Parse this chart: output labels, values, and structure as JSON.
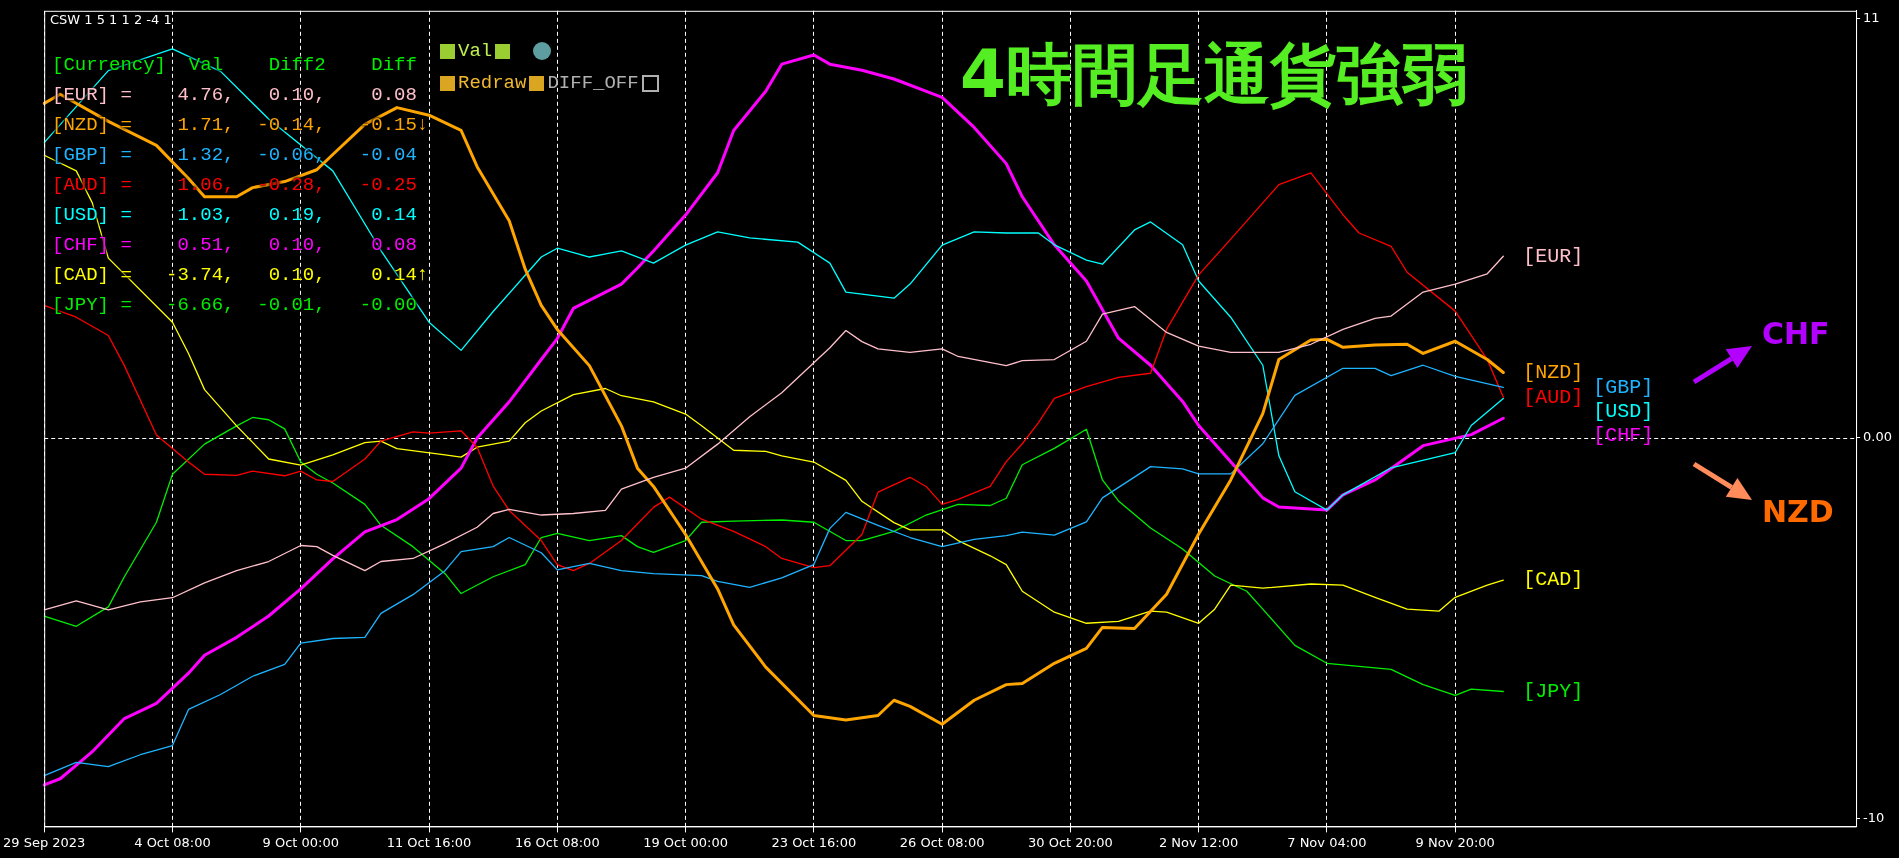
{
  "chart_data": {
    "type": "line",
    "title": "4時間足通貨強弱",
    "annotations": [
      "CSW 1 5 1 1 2 -4 1",
      "[Currency]  Val    Diff2    Diff",
      "[EUR] =    4.76,   0.10,    0.08",
      "[NZD] =    1.71,  -0.14,   -0.15↓",
      "[GBP] =    1.32,  -0.06,   -0.04",
      "[AUD] =    1.06,  -0.28,   -0.25",
      "[USD] =    1.03,   0.19,    0.14",
      "[CHF] =    0.51,   0.10,    0.08",
      "[CAD] =   -3.74,   0.10,    0.14↑",
      "[JPY] =   -6.66,  -0.01,   -0.00",
      "Val",
      "Redraw",
      "DIFF_OFF",
      "CHF",
      "NZD"
    ],
    "categories": [
      "29 Sep 2023",
      null,
      null,
      null,
      null,
      null,
      null,
      null,
      "4 Oct 08:00",
      null,
      null,
      null,
      null,
      null,
      null,
      null,
      "9 Oct 00:00",
      null,
      null,
      null,
      null,
      null,
      null,
      null,
      "11 Oct 16:00",
      null,
      null,
      null,
      null,
      null,
      null,
      null,
      "16 Oct 08:00",
      null,
      null,
      null,
      null,
      null,
      null,
      null,
      "19 Oct 00:00",
      null,
      null,
      null,
      null,
      null,
      null,
      null,
      "23 Oct 16:00",
      null,
      null,
      null,
      null,
      null,
      null,
      null,
      "26 Oct 08:00",
      null,
      null,
      null,
      null,
      null,
      null,
      null,
      "30 Oct 20:00",
      null,
      null,
      null,
      null,
      null,
      null,
      null,
      "2 Nov 12:00",
      null,
      null,
      null,
      null,
      null,
      null,
      null,
      "7 Nov 04:00",
      null,
      null,
      null,
      null,
      null,
      null,
      null,
      "9 Nov 20:00",
      null,
      null,
      null,
      null,
      null,
      null,
      null,
      null,
      null,
      null,
      null,
      null,
      null,
      null,
      null,
      null,
      null,
      null,
      null,
      null,
      null,
      null,
      null,
      null,
      null
    ],
    "ylim": [
      -10.2,
      11.2
    ],
    "yticks": [
      11,
      {
        "value": 0,
        "label": "0.00"
      },
      -10
    ],
    "grid": "x",
    "ref_lines": [
      {
        "axis": "y",
        "value": 0,
        "color": "#ffffff",
        "line_style": "dashed"
      }
    ],
    "series": [
      {
        "name": "[EUR]",
        "color": "#ffc0cb",
        "values": [
          -4.52,
          null,
          -4.28,
          null,
          -4.52,
          null,
          -4.31,
          null,
          -4.2,
          null,
          -3.81,
          null,
          -3.49,
          null,
          -3.25,
          null,
          -2.83,
          -2.86,
          -3.09,
          null,
          -3.49,
          -3.25,
          null,
          -3.17,
          null,
          -2.78,
          null,
          -2.35,
          -1.99,
          -1.88,
          null,
          -2.03,
          null,
          -1.99,
          null,
          -1.91,
          -1.35,
          null,
          -1.04,
          null,
          -0.8,
          null,
          -0.17,
          null,
          0.55,
          null,
          1.18,
          1.57,
          null,
          2.36,
          2.81,
          2.52,
          2.33,
          null,
          2.24,
          null,
          2.33,
          2.13,
          null,
          null,
          1.89,
          2.02,
          null,
          2.05,
          null,
          2.53,
          3.24,
          null,
          3.44,
          null,
          2.76,
          null,
          2.4,
          null,
          2.24,
          null,
          null,
          2.24,
          null,
          2.45,
          null,
          2.84,
          null,
          3.13,
          3.19,
          null,
          3.82,
          null,
          4.03,
          null,
          4.3,
          4.76,
          null,
          null,
          null,
          null,
          null,
          null,
          null,
          null,
          null,
          null,
          null,
          null,
          null,
          null,
          null,
          null,
          null,
          null,
          null,
          null,
          null,
          null
        ]
      },
      {
        "name": "[NZD]",
        "color": "#ffa500",
        "values": [
          8.77,
          9.01,
          null,
          null,
          8.3,
          null,
          null,
          7.67,
          null,
          6.8,
          6.32,
          null,
          6.32,
          6.56,
          null,
          6.72,
          null,
          7.03,
          7.43,
          null,
          8.22,
          null,
          8.66,
          null,
          8.46,
          null,
          8.06,
          7.11,
          null,
          5.69,
          4.42,
          3.47,
          2.84,
          null,
          1.89,
          null,
          0.31,
          -0.8,
          -1.28,
          null,
          -2.54,
          null,
          -3.97,
          -4.91,
          null,
          -6.02,
          null,
          null,
          -7.29,
          null,
          -7.41,
          null,
          -7.29,
          -6.89,
          -7.05,
          null,
          -7.52,
          null,
          -6.89,
          null,
          -6.48,
          -6.45,
          null,
          -5.92,
          null,
          -5.53,
          -4.98,
          null,
          -5.01,
          null,
          -4.11,
          null,
          -2.53,
          null,
          -1.11,
          null,
          0.63,
          2.05,
          null,
          2.56,
          2.58,
          2.37,
          null,
          2.43,
          null,
          2.45,
          2.21,
          null,
          2.53,
          null,
          2.05,
          1.71,
          null,
          null,
          null,
          null,
          null,
          null,
          null,
          null,
          null,
          null,
          null,
          null,
          null,
          null,
          null,
          null,
          null,
          null,
          null,
          null,
          null,
          null
        ]
      },
      {
        "name": "[GBP]",
        "color": "#1eb4ff",
        "values": [
          -8.87,
          null,
          -8.52,
          null,
          -8.63,
          null,
          -8.32,
          null,
          -8.08,
          -7.13,
          null,
          -6.74,
          null,
          -6.26,
          null,
          -5.95,
          -5.39,
          null,
          -5.27,
          null,
          -5.24,
          -4.61,
          null,
          -4.12,
          null,
          -3.49,
          -2.99,
          null,
          -2.86,
          -2.62,
          null,
          -3.02,
          -3.47,
          null,
          -3.3,
          null,
          -3.49,
          null,
          -3.57,
          null,
          null,
          -3.62,
          -3.77,
          null,
          -3.93,
          null,
          -3.68,
          null,
          -3.33,
          -2.38,
          -1.96,
          null,
          -2.3,
          null,
          -2.62,
          null,
          -2.86,
          null,
          -2.67,
          null,
          -2.57,
          -2.48,
          null,
          -2.56,
          null,
          -2.21,
          -1.58,
          null,
          null,
          -0.76,
          null,
          -0.82,
          -0.95,
          null,
          -0.95,
          null,
          -0.16,
          null,
          1.11,
          null,
          null,
          1.82,
          null,
          1.82,
          1.63,
          null,
          1.9,
          null,
          1.61,
          null,
          null,
          1.32,
          null,
          null,
          null,
          null,
          null,
          null,
          null,
          null,
          null,
          null,
          null,
          null,
          null,
          null,
          null,
          null,
          null,
          null,
          null,
          null,
          null,
          null
        ]
      },
      {
        "name": "[AUD]",
        "color": "#ff0000",
        "values": [
          3.47,
          null,
          3.16,
          null,
          2.68,
          1.89,
          null,
          0.07,
          null,
          -0.64,
          -0.96,
          null,
          -0.99,
          -0.88,
          null,
          -1.0,
          -0.88,
          -1.11,
          -1.15,
          null,
          -0.56,
          -0.09,
          null,
          0.15,
          0.12,
          null,
          0.18,
          -0.25,
          -1.27,
          -1.91,
          null,
          -2.7,
          -3.33,
          -3.49,
          -3.3,
          null,
          -2.7,
          null,
          -1.83,
          -1.56,
          null,
          -2.14,
          null,
          -2.46,
          null,
          -2.86,
          -3.17,
          null,
          -3.41,
          -3.36,
          null,
          -2.54,
          -1.43,
          null,
          -1.04,
          -1.28,
          -1.75,
          -1.62,
          null,
          -1.28,
          -0.63,
          -0.16,
          0.39,
          1.03,
          null,
          1.34,
          null,
          1.58,
          null,
          1.69,
          2.84,
          null,
          4.27,
          null,
          5.21,
          null,
          6.16,
          6.64,
          null,
          6.95,
          null,
          5.85,
          5.37,
          null,
          5.02,
          4.34,
          null,
          null,
          3.32,
          null,
          2.05,
          1.06,
          null,
          null,
          null,
          null,
          null,
          null,
          null,
          null,
          null,
          null,
          null,
          null,
          null,
          null,
          null,
          null,
          null,
          null,
          null,
          null,
          null,
          null
        ]
      },
      {
        "name": "[USD]",
        "color": "#00ffff",
        "values": [
          7.74,
          null,
          null,
          null,
          9.63,
          null,
          null,
          null,
          10.2,
          null,
          null,
          9.61,
          null,
          null,
          8.36,
          null,
          null,
          null,
          7.0,
          null,
          null,
          4.91,
          null,
          null,
          3.03,
          null,
          2.29,
          null,
          3.31,
          null,
          null,
          4.74,
          4.97,
          null,
          4.74,
          null,
          4.9,
          null,
          4.58,
          null,
          5.05,
          null,
          5.4,
          null,
          5.24,
          null,
          null,
          5.13,
          null,
          4.58,
          3.82,
          null,
          null,
          3.66,
          4.03,
          null,
          5.05,
          null,
          5.4,
          null,
          5.37,
          null,
          5.37,
          5.06,
          null,
          4.66,
          4.55,
          null,
          5.45,
          5.66,
          null,
          5.06,
          4.11,
          null,
          3.16,
          null,
          1.9,
          -0.47,
          -1.42,
          null,
          -1.9,
          -1.5,
          null,
          null,
          -0.79,
          null,
          null,
          null,
          -0.39,
          0.32,
          null,
          1.03,
          null,
          null,
          null,
          null,
          null,
          null,
          null,
          null,
          null,
          null,
          null,
          null,
          null,
          null,
          null,
          null,
          null,
          null,
          null,
          null,
          null,
          null
        ]
      },
      {
        "name": "[CHF]",
        "color": "#ff00ff",
        "values": [
          -9.11,
          -8.95,
          null,
          -8.24,
          null,
          -7.37,
          null,
          -6.97,
          null,
          -6.18,
          -5.71,
          null,
          -5.24,
          null,
          -4.68,
          null,
          -3.97,
          null,
          -3.18,
          null,
          -2.47,
          null,
          -2.15,
          null,
          -1.6,
          null,
          -0.8,
          -0.01,
          null,
          0.94,
          null,
          2.05,
          2.6,
          3.39,
          null,
          null,
          4.03,
          4.45,
          4.9,
          null,
          5.84,
          null,
          6.95,
          8.06,
          null,
          9.09,
          9.8,
          null,
          10.04,
          9.8,
          null,
          9.64,
          null,
          9.41,
          null,
          null,
          8.93,
          null,
          8.14,
          null,
          7.19,
          6.32,
          null,
          5.06,
          null,
          4.11,
          null,
          2.61,
          null,
          1.9,
          null,
          0.95,
          0.32,
          null,
          -0.63,
          null,
          -1.58,
          -1.82,
          null,
          null,
          -1.9,
          -1.5,
          null,
          -1.11,
          null,
          null,
          -0.21,
          null,
          null,
          0.08,
          null,
          0.51,
          null,
          null,
          null,
          null,
          null,
          null,
          null,
          null,
          null,
          null,
          null,
          null,
          null,
          null,
          null,
          null,
          null,
          null,
          null,
          null,
          null,
          null
        ]
      },
      {
        "name": "[CAD]",
        "color": "#ffff00",
        "values": [
          7.41,
          null,
          7.0,
          6.16,
          4.71,
          null,
          null,
          null,
          3.03,
          2.21,
          1.26,
          null,
          0.31,
          null,
          -0.56,
          null,
          -0.72,
          null,
          -0.45,
          null,
          -0.13,
          -0.09,
          -0.29,
          null,
          null,
          -0.45,
          -0.51,
          -0.25,
          null,
          -0.09,
          0.39,
          0.7,
          null,
          1.13,
          null,
          1.29,
          1.1,
          null,
          0.94,
          null,
          0.62,
          0.31,
          null,
          -0.33,
          null,
          -0.36,
          -0.48,
          null,
          -0.64,
          null,
          -1.12,
          -1.67,
          null,
          -2.23,
          -2.42,
          null,
          -2.42,
          -2.7,
          null,
          -3.1,
          -3.33,
          -4.03,
          null,
          -4.58,
          null,
          -4.87,
          null,
          -4.82,
          null,
          -4.55,
          -4.58,
          null,
          -4.87,
          -4.5,
          -3.87,
          null,
          -3.95,
          null,
          null,
          -3.84,
          null,
          -3.87,
          null,
          -4.19,
          null,
          -4.5,
          null,
          -4.55,
          -4.19,
          null,
          -3.87,
          -3.74,
          null,
          null,
          null,
          null,
          null,
          null,
          null,
          null,
          null,
          null,
          null,
          null,
          null,
          null,
          null,
          null,
          null,
          null,
          null,
          null,
          null,
          null
        ]
      },
      {
        "name": "[JPY]",
        "color": "#00ee00",
        "values": [
          -4.68,
          null,
          -4.95,
          null,
          -4.44,
          -3.65,
          null,
          -2.22,
          -0.96,
          null,
          -0.17,
          null,
          0.31,
          0.53,
          0.47,
          0.23,
          -0.64,
          -0.96,
          -1.19,
          null,
          -1.75,
          -2.3,
          null,
          -2.86,
          null,
          -3.57,
          -4.09,
          null,
          -3.65,
          null,
          -3.33,
          -2.62,
          -2.51,
          null,
          -2.7,
          null,
          -2.57,
          -2.86,
          -3.01,
          null,
          -2.7,
          -2.22,
          null,
          -2.19,
          null,
          null,
          -2.16,
          null,
          -2.22,
          null,
          -2.7,
          -2.7,
          null,
          -2.46,
          null,
          -2.03,
          null,
          -1.75,
          null,
          -1.78,
          -1.59,
          -0.71,
          null,
          -0.28,
          null,
          0.22,
          -1.11,
          -1.66,
          null,
          -2.37,
          null,
          -2.92,
          null,
          -3.63,
          null,
          -4.03,
          -4.5,
          null,
          -5.45,
          null,
          -5.92,
          null,
          -6.0,
          null,
          -6.08,
          null,
          -6.48,
          null,
          -6.76,
          -6.6,
          null,
          -6.66,
          null,
          null,
          null,
          null,
          null,
          null,
          null,
          null,
          null,
          null,
          null,
          null,
          null,
          null,
          null,
          null,
          null,
          null,
          null,
          null,
          null,
          null
        ]
      }
    ]
  }
}
